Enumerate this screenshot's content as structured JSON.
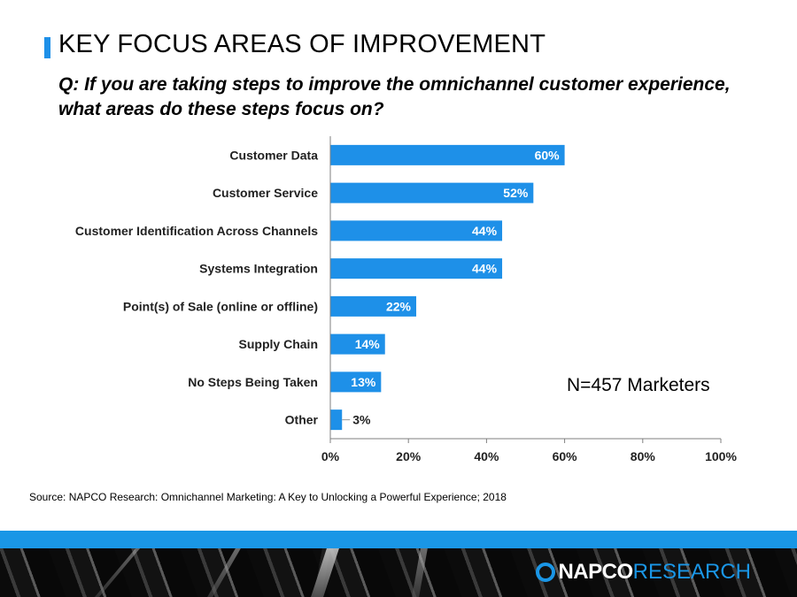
{
  "header": {
    "title": "KEY FOCUS AREAS OF IMPROVEMENT",
    "question": "Q: If you are taking steps to improve the omnichannel customer experience, what areas do these steps focus on?"
  },
  "sample_note": "N=457 Marketers",
  "source": "Source: NAPCO Research: Omnichannel Marketing: A Key to Unlocking a Powerful Experience; 2018",
  "logo": {
    "part1": "NAPCO",
    "part2": "RESEARCH",
    "icon": "napco-ring-icon"
  },
  "colors": {
    "bar": "#1e90e8",
    "accent": "#1a96e6",
    "axis": "#7f7f7f"
  },
  "chart_data": {
    "type": "bar",
    "orientation": "horizontal",
    "categories": [
      "Customer Data",
      "Customer Service",
      "Customer Identification Across Channels",
      "Systems Integration",
      "Point(s) of Sale (online or offline)",
      "Supply Chain",
      "No Steps Being Taken",
      "Other"
    ],
    "values": [
      60,
      52,
      44,
      44,
      22,
      14,
      13,
      3
    ],
    "data_labels": [
      "60%",
      "52%",
      "44%",
      "44%",
      "22%",
      "14%",
      "13%",
      "3%"
    ],
    "xlim": [
      0,
      100
    ],
    "xticks": [
      "0%",
      "20%",
      "40%",
      "60%",
      "80%",
      "100%"
    ],
    "grid": false,
    "legend": "none"
  }
}
